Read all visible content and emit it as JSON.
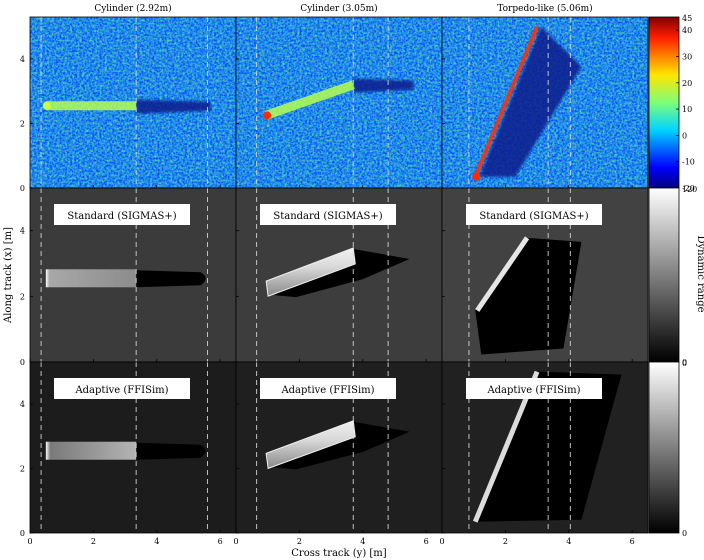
{
  "columns": [
    {
      "title": "Cylinder (2.92m)"
    },
    {
      "title": "Cylinder (3.05m)"
    },
    {
      "title": "Torpedo-like (5.06m)"
    }
  ],
  "rows": [
    {
      "type": "sonar"
    },
    {
      "type": "sim",
      "label": "Standard (SIGMAS+)"
    },
    {
      "type": "sim",
      "label": "Adaptive (FFISim)"
    }
  ],
  "axes": {
    "xlabel": "Cross track (y) [m]",
    "ylabel": "Along track (x) [m]",
    "xticks": [
      "0",
      "2",
      "4",
      "6"
    ],
    "yticks": [
      "0",
      "2",
      "4"
    ],
    "xlim": [
      0,
      6.5
    ],
    "ylim": [
      0,
      5.3
    ]
  },
  "colorbars": {
    "top": {
      "ticks": [
        "-10",
        "0",
        "10",
        "20",
        "30",
        "40"
      ],
      "top_label": "45",
      "bottom_label": "-20",
      "range": [
        -20,
        45
      ],
      "colormap": "jet"
    },
    "middle": {
      "label": "Dynamic range",
      "top_label": "120",
      "bottom_label": "0",
      "colormap": "gray"
    },
    "bottom": {
      "top_label": "0",
      "bottom_label": "0",
      "colormap": "gray"
    }
  },
  "chart_data": {
    "type": "heatmap",
    "panels": 9,
    "dashed_guides_x": [
      [
        0.35,
        3.35,
        5.6
      ],
      [
        0.65,
        3.7,
        4.8
      ],
      [
        0.85,
        3.35,
        4.05
      ]
    ],
    "objects": [
      {
        "column": "Cylinder (2.92m)",
        "x_start": 0.5,
        "y_start": 2.55,
        "x_end": 3.35,
        "y_end": 2.55,
        "shadow_end_x": 5.7
      },
      {
        "column": "Cylinder (3.05m)",
        "x_start": 0.95,
        "y_start": 2.25,
        "x_end": 3.7,
        "y_end": 3.2,
        "shadow_end_x": 5.6
      },
      {
        "column": "Torpedo-like (5.06m)",
        "x_start": 1.05,
        "y_start": 0.35,
        "x_end": 3.0,
        "y_end": 5.0,
        "shadow_end_x": 4.4
      }
    ],
    "background_levels": {
      "standard": [
        0.23,
        0.24,
        0.26
      ],
      "adaptive": [
        0.11,
        0.12,
        0.13
      ]
    },
    "colors": {
      "colorbar_bottom_dark": "#000000",
      "colorbar_top_light": "#ffffff",
      "guide_line": "#dcdcdc"
    }
  }
}
